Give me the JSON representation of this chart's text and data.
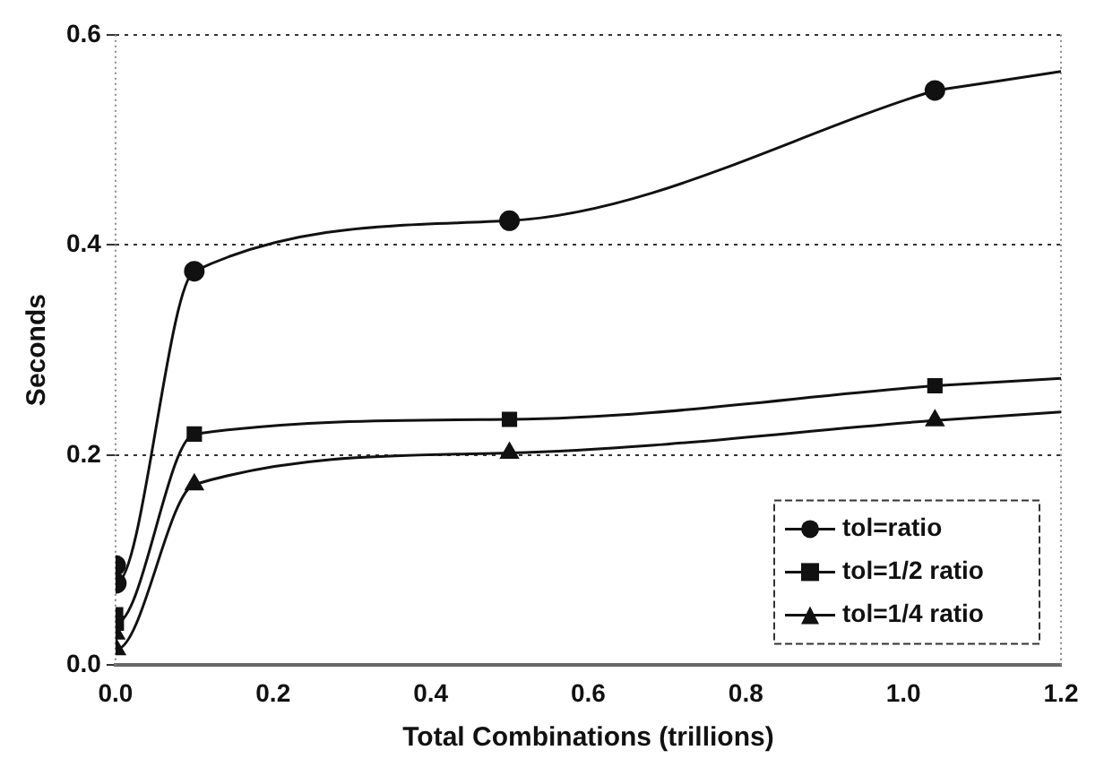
{
  "chart_data": {
    "type": "line",
    "xlabel": "Total Combinations (trillions)",
    "ylabel": "Seconds",
    "xlim": [
      0,
      1.2
    ],
    "xticks": [
      {
        "value": 0,
        "label": "0.0"
      },
      0.2,
      0.4,
      0.6,
      0.8,
      {
        "value": 1,
        "label": "1.0"
      },
      1.2
    ],
    "ylim": [
      0,
      0.6
    ],
    "yticks": [
      {
        "value": 0,
        "label": "0.0"
      },
      0.2,
      0.4,
      0.6
    ],
    "grid": "y",
    "legend": "bottom right",
    "line_style": "solid",
    "series": [
      {
        "name": "tol=ratio",
        "color": "#111111",
        "marker": "circle",
        "x": [
          0.0001,
          0.001,
          0.1,
          0.5,
          1.04
        ],
        "values": [
          0.095,
          0.078,
          0.375,
          0.423,
          0.547
        ]
      },
      {
        "name": "tol=1/2 ratio",
        "color": "#111111",
        "marker": "square",
        "x": [
          0.0001,
          0.001,
          0.1,
          0.5,
          1.04
        ],
        "values": [
          0.048,
          0.04,
          0.22,
          0.234,
          0.266
        ]
      },
      {
        "name": "tol=1/4 ratio",
        "color": "#111111",
        "marker": "triangle",
        "x": [
          0.0001,
          0.001,
          0.1,
          0.5,
          1.04
        ],
        "values": [
          0.03,
          0.015,
          0.172,
          0.202,
          0.233
        ]
      },
      {
        "color": "#111111",
        "marker": "none",
        "x": [
          1.04,
          1.2
        ],
        "values": [
          0.547,
          0.565
        ]
      },
      {
        "color": "#111111",
        "marker": "none",
        "x": [
          1.04,
          1.2
        ],
        "values": [
          0.266,
          0.273
        ]
      },
      {
        "color": "#111111",
        "marker": "none",
        "x": [
          1.04,
          1.2
        ],
        "values": [
          0.233,
          0.241
        ]
      }
    ]
  }
}
